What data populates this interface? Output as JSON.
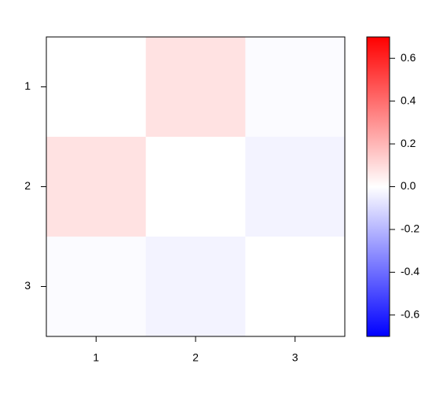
{
  "chart_data": {
    "type": "heatmap",
    "x_categories": [
      "1",
      "2",
      "3"
    ],
    "y_categories": [
      "1",
      "2",
      "3"
    ],
    "values": [
      [
        0,
        0.08,
        -0.01
      ],
      [
        0.08,
        0,
        -0.033
      ],
      [
        -0.01,
        -0.033,
        0
      ]
    ],
    "colors": {
      "low": "#0000ff",
      "mid": "#ffffff",
      "high": "#ff0000"
    },
    "zlim": [
      -0.7,
      0.7
    ],
    "zticks": [
      -0.6,
      -0.4,
      -0.2,
      {
        "value": 0,
        "label": "0.0"
      },
      0.2,
      0.4,
      0.6
    ]
  }
}
